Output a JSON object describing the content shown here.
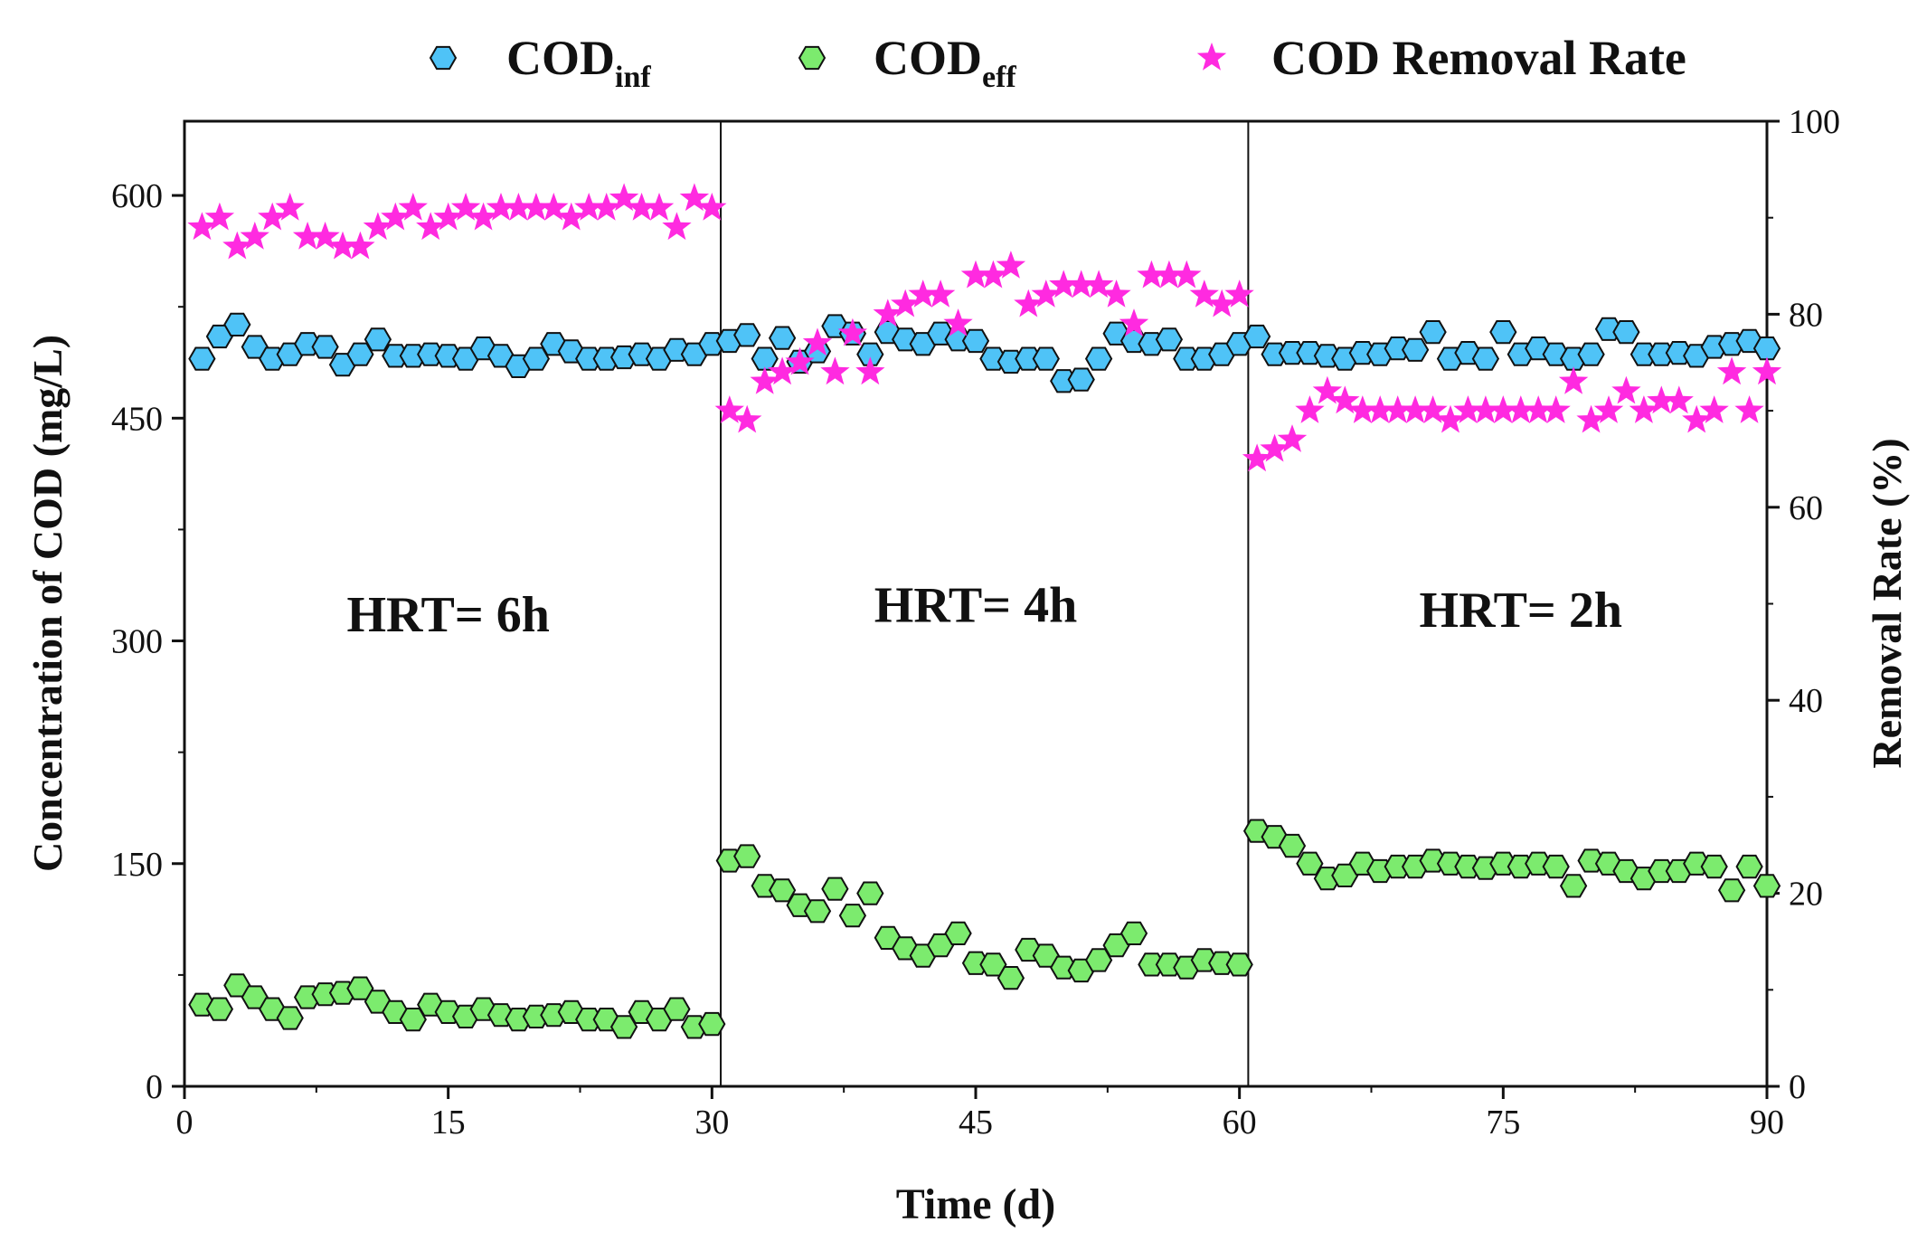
{
  "chart_data": {
    "type": "scatter",
    "title": "",
    "xlabel": "Time (d)",
    "ylabel_left": "Concentration of COD (mg/L)",
    "ylabel_right": "Removal Rate (%)",
    "xlim": [
      0,
      90
    ],
    "ylim_left": [
      0,
      650
    ],
    "ylim_right": [
      0,
      100
    ],
    "x_ticks": [
      "0",
      "15",
      "30",
      "45",
      "60",
      "75",
      "90"
    ],
    "y_left_ticks": [
      "0",
      "150",
      "300",
      "450",
      "600"
    ],
    "y_right_ticks": [
      "0",
      "20",
      "40",
      "60",
      "80",
      "100"
    ],
    "legend": {
      "placement": "top",
      "items": [
        {
          "label": "COD",
          "sub": "inf",
          "marker": "hexagon",
          "color": "#4FC3F7"
        },
        {
          "label": "COD",
          "sub": "eff",
          "marker": "hexagon",
          "color": "#7CEB6E"
        },
        {
          "label": "COD Removal Rate",
          "sub": "",
          "marker": "star",
          "color": "#FF2AE0"
        }
      ]
    },
    "phase_dividers": [
      30.5,
      60.5
    ],
    "annotations": [
      {
        "text": "HRT= 6h",
        "x": 15,
        "y_right": 49
      },
      {
        "text": "HRT= 4h",
        "x": 45,
        "y_right": 50
      },
      {
        "text": "HRT= 2h",
        "x": 76,
        "y_right": 49.5
      }
    ],
    "series": [
      {
        "name": "COD_inf",
        "axis": "left",
        "marker": "hexagon",
        "color": "#4FC3F7",
        "x": [
          1,
          2,
          3,
          4,
          5,
          6,
          7,
          8,
          9,
          10,
          11,
          12,
          13,
          14,
          15,
          16,
          17,
          18,
          19,
          20,
          21,
          22,
          23,
          24,
          25,
          26,
          27,
          28,
          29,
          30,
          31,
          32,
          33,
          34,
          35,
          36,
          37,
          38,
          39,
          40,
          41,
          42,
          43,
          44,
          45,
          46,
          47,
          48,
          49,
          50,
          51,
          52,
          53,
          54,
          55,
          56,
          57,
          58,
          59,
          60,
          61,
          62,
          63,
          64,
          65,
          66,
          67,
          68,
          69,
          70,
          71,
          72,
          73,
          74,
          75,
          76,
          77,
          78,
          79,
          80,
          81,
          82,
          83,
          84,
          85,
          86,
          87,
          88,
          89,
          90
        ],
        "values": [
          490,
          505,
          513,
          498,
          490,
          493,
          500,
          498,
          486,
          493,
          503,
          492,
          492,
          493,
          492,
          490,
          497,
          492,
          485,
          490,
          500,
          495,
          490,
          490,
          491,
          493,
          490,
          496,
          493,
          500,
          502,
          506,
          490,
          504,
          488,
          495,
          512,
          507,
          493,
          508,
          503,
          500,
          507,
          503,
          502,
          490,
          488,
          490,
          490,
          475,
          476,
          490,
          507,
          502,
          500,
          503,
          490,
          490,
          493,
          500,
          505,
          493,
          494,
          494,
          492,
          490,
          494,
          493,
          497,
          496,
          508,
          490,
          494,
          490,
          508,
          493,
          497,
          493,
          490,
          493,
          510,
          508,
          493,
          493,
          494,
          492,
          498,
          500,
          502,
          497
        ]
      },
      {
        "name": "COD_eff",
        "axis": "left",
        "marker": "hexagon",
        "color": "#7CEB6E",
        "x": [
          1,
          2,
          3,
          4,
          5,
          6,
          7,
          8,
          9,
          10,
          11,
          12,
          13,
          14,
          15,
          16,
          17,
          18,
          19,
          20,
          21,
          22,
          23,
          24,
          25,
          26,
          27,
          28,
          29,
          30,
          31,
          32,
          33,
          34,
          35,
          36,
          37,
          38,
          39,
          40,
          41,
          42,
          43,
          44,
          45,
          46,
          47,
          48,
          49,
          50,
          51,
          52,
          53,
          54,
          55,
          56,
          57,
          58,
          59,
          60,
          61,
          62,
          63,
          64,
          65,
          66,
          67,
          68,
          69,
          70,
          71,
          72,
          73,
          74,
          75,
          76,
          77,
          78,
          79,
          80,
          81,
          82,
          83,
          84,
          85,
          86,
          87,
          88,
          89,
          90
        ],
        "values": [
          55,
          52,
          68,
          60,
          52,
          46,
          60,
          62,
          63,
          66,
          57,
          50,
          45,
          55,
          50,
          47,
          52,
          48,
          45,
          47,
          48,
          50,
          45,
          45,
          40,
          50,
          45,
          52,
          40,
          42,
          152,
          155,
          135,
          132,
          122,
          118,
          133,
          115,
          130,
          100,
          93,
          88,
          95,
          103,
          83,
          82,
          73,
          92,
          88,
          80,
          78,
          85,
          95,
          103,
          82,
          82,
          80,
          85,
          83,
          82,
          172,
          168,
          162,
          150,
          140,
          142,
          150,
          145,
          148,
          148,
          152,
          150,
          148,
          147,
          150,
          148,
          150,
          148,
          135,
          152,
          150,
          145,
          140,
          145,
          145,
          150,
          148,
          132,
          148,
          135
        ]
      },
      {
        "name": "COD Removal Rate",
        "axis": "right",
        "marker": "star",
        "color": "#FF2AE0",
        "x": [
          1,
          2,
          3,
          4,
          5,
          6,
          7,
          8,
          9,
          10,
          11,
          12,
          13,
          14,
          15,
          16,
          17,
          18,
          19,
          20,
          21,
          22,
          23,
          24,
          25,
          26,
          27,
          28,
          29,
          30,
          31,
          32,
          33,
          34,
          35,
          36,
          37,
          38,
          39,
          40,
          41,
          42,
          43,
          44,
          45,
          46,
          47,
          48,
          49,
          50,
          51,
          52,
          53,
          54,
          55,
          56,
          57,
          58,
          59,
          60,
          61,
          62,
          63,
          64,
          65,
          66,
          67,
          68,
          69,
          70,
          71,
          72,
          73,
          74,
          75,
          76,
          77,
          78,
          79,
          80,
          81,
          82,
          83,
          84,
          85,
          86,
          87,
          88,
          89,
          90
        ],
        "values": [
          89,
          90,
          87,
          88,
          90,
          91,
          88,
          88,
          87,
          87,
          89,
          90,
          91,
          89,
          90,
          91,
          90,
          91,
          91,
          91,
          91,
          90,
          91,
          91,
          92,
          91,
          91,
          89,
          92,
          91,
          70,
          69,
          73,
          74,
          75,
          77,
          74,
          78,
          74,
          80,
          81,
          82,
          82,
          79,
          84,
          84,
          85,
          81,
          82,
          83,
          83,
          83,
          82,
          79,
          84,
          84,
          84,
          82,
          81,
          82,
          65,
          66,
          67,
          70,
          72,
          71,
          70,
          70,
          70,
          70,
          70,
          69,
          70,
          70,
          70,
          70,
          70,
          70,
          73,
          69,
          70,
          72,
          70,
          71,
          71,
          69,
          70,
          74,
          70,
          74
        ]
      }
    ]
  }
}
